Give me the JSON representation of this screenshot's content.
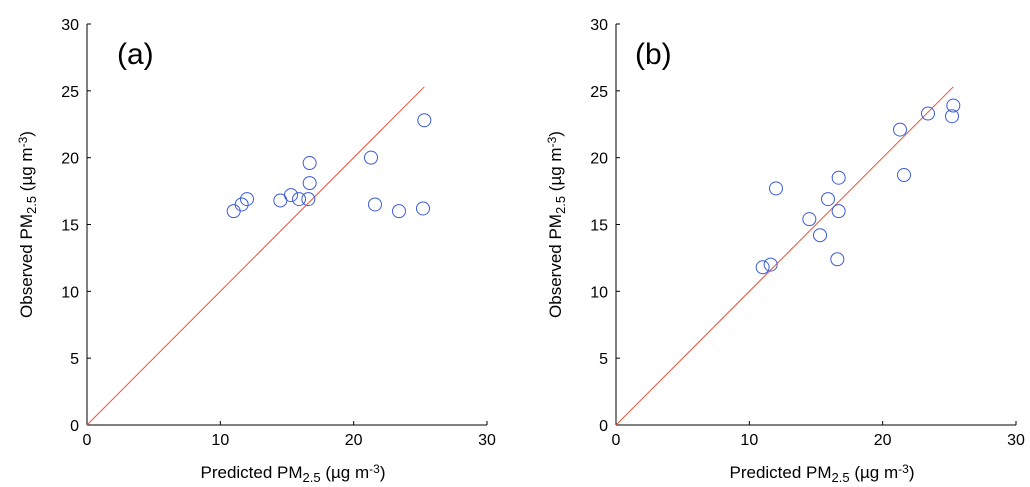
{
  "chart_data": [
    {
      "type": "scatter",
      "panel_label": "(a)",
      "xlabel": {
        "main": "Predicted  PM",
        "sub": "2.5",
        "unit_open": "  (µg m",
        "unit_sup": "-3",
        "unit_close": ")"
      },
      "ylabel": {
        "main": "Observed  PM",
        "sub": "2.5",
        "unit_open": "  (µg m",
        "unit_sup": "-3",
        "unit_close": ")"
      },
      "xlim": [
        0,
        30
      ],
      "ylim": [
        0,
        30
      ],
      "xticks": [
        "0",
        "10",
        "20",
        "30"
      ],
      "yticks": [
        "0",
        "5",
        "10",
        "15",
        "20",
        "25",
        "30"
      ],
      "grid": false,
      "reference_line": {
        "type": "1:1",
        "from": [
          0,
          0
        ],
        "to": [
          25.3,
          25.3
        ],
        "color": "#e8533a"
      },
      "marker_color": "#3b5bd9",
      "points": [
        {
          "x": 11.0,
          "y": 16.0
        },
        {
          "x": 11.6,
          "y": 16.5
        },
        {
          "x": 12.0,
          "y": 16.9
        },
        {
          "x": 14.5,
          "y": 16.8
        },
        {
          "x": 15.3,
          "y": 17.2
        },
        {
          "x": 15.9,
          "y": 16.9
        },
        {
          "x": 16.6,
          "y": 16.9
        },
        {
          "x": 16.7,
          "y": 18.1
        },
        {
          "x": 16.7,
          "y": 19.6
        },
        {
          "x": 21.3,
          "y": 20.0
        },
        {
          "x": 21.6,
          "y": 16.5
        },
        {
          "x": 23.4,
          "y": 16.0
        },
        {
          "x": 25.2,
          "y": 16.2
        },
        {
          "x": 25.3,
          "y": 22.8
        }
      ]
    },
    {
      "type": "scatter",
      "panel_label": "(b)",
      "xlabel": {
        "main": "Predicted  PM",
        "sub": "2.5",
        "unit_open": "  (µg m",
        "unit_sup": "-3",
        "unit_close": ")"
      },
      "ylabel": {
        "main": "Observed  PM",
        "sub": "2.5",
        "unit_open": "  (µg m",
        "unit_sup": "-3",
        "unit_close": ")"
      },
      "xlim": [
        0,
        30
      ],
      "ylim": [
        0,
        30
      ],
      "xticks": [
        "0",
        "10",
        "20",
        "30"
      ],
      "yticks": [
        "0",
        "5",
        "10",
        "15",
        "20",
        "25",
        "30"
      ],
      "grid": false,
      "reference_line": {
        "type": "1:1",
        "from": [
          0,
          0
        ],
        "to": [
          25.3,
          25.3
        ],
        "color": "#e8533a"
      },
      "marker_color": "#3b5bd9",
      "points": [
        {
          "x": 11.0,
          "y": 11.8
        },
        {
          "x": 11.6,
          "y": 12.0
        },
        {
          "x": 12.0,
          "y": 17.7
        },
        {
          "x": 14.5,
          "y": 15.4
        },
        {
          "x": 15.3,
          "y": 14.2
        },
        {
          "x": 15.9,
          "y": 16.9
        },
        {
          "x": 16.6,
          "y": 12.4
        },
        {
          "x": 16.7,
          "y": 16.0
        },
        {
          "x": 16.7,
          "y": 18.5
        },
        {
          "x": 21.3,
          "y": 22.1
        },
        {
          "x": 21.6,
          "y": 18.7
        },
        {
          "x": 23.4,
          "y": 23.3
        },
        {
          "x": 25.2,
          "y": 23.1
        },
        {
          "x": 25.3,
          "y": 23.9
        }
      ]
    }
  ]
}
